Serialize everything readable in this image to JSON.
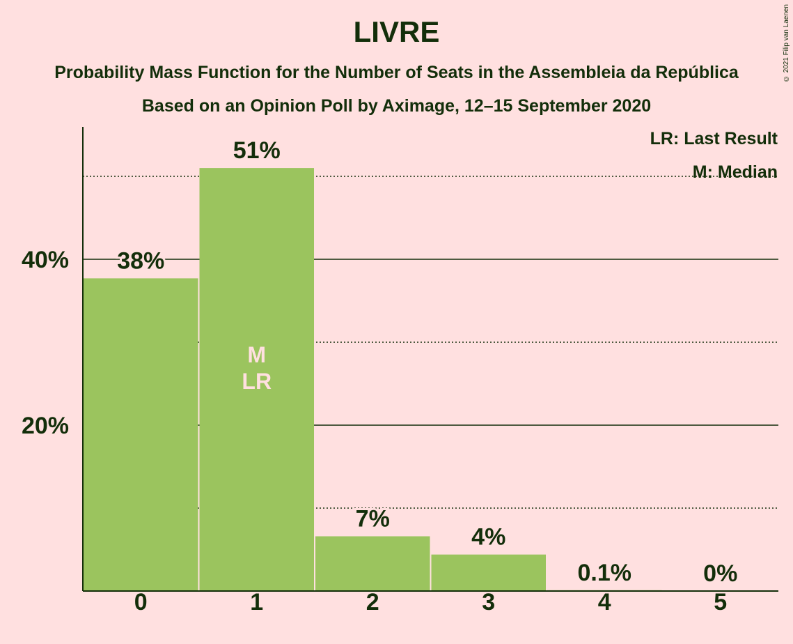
{
  "header": {
    "title": "LIVRE",
    "subtitle1": "Probability Mass Function for the Number of Seats in the Assembleia da República",
    "subtitle2": "Based on an Opinion Poll by Aximage, 12–15 September 2020"
  },
  "legend": {
    "last_result": "LR: Last Result",
    "median": "M: Median"
  },
  "copyright": "© 2021 Filip van Laenen",
  "colors": {
    "background": "#FFE0E0",
    "bar": "#9BC45E",
    "text": "#132E0A",
    "bar_marker_text": "#FFE0E0"
  },
  "chart_data": {
    "type": "bar",
    "categories": [
      "0",
      "1",
      "2",
      "3",
      "4",
      "5"
    ],
    "values": [
      37.7,
      51.0,
      6.6,
      4.4,
      0.1,
      0.0
    ],
    "value_labels": [
      "38%",
      "51%",
      "7%",
      "4%",
      "0.1%",
      "0%"
    ],
    "yticks": [
      20,
      40
    ],
    "ytick_labels": [
      "20%",
      "40%"
    ],
    "minor_gridlines": [
      10,
      30,
      50
    ],
    "ylim": [
      0,
      55
    ],
    "markers": {
      "1": [
        "M",
        "LR"
      ]
    },
    "grid": true,
    "legend_position": "top-right"
  }
}
